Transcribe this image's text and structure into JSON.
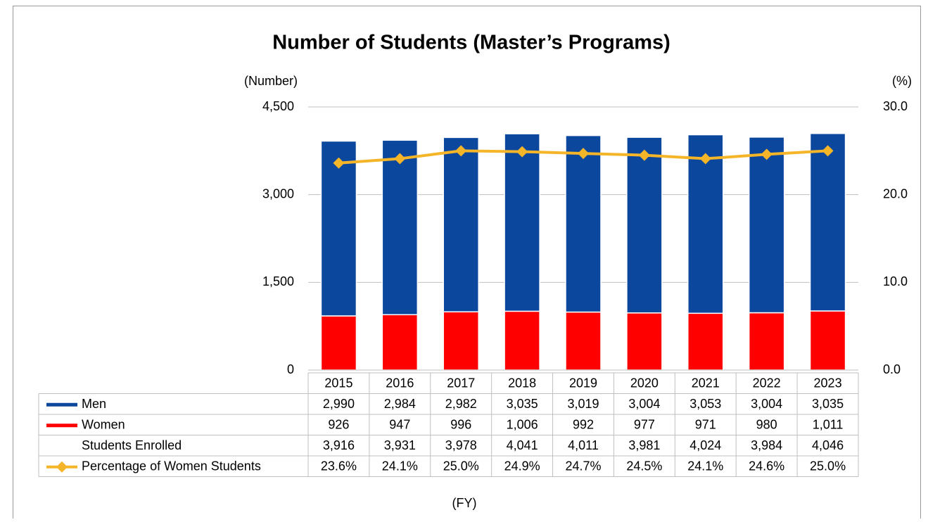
{
  "chart_data": {
    "type": "bar",
    "title": "Number of Students (Master’s Programs)",
    "y_label": "(Number)",
    "y2_label": "(%)",
    "x_label": "(FY)",
    "categories": [
      "2015",
      "2016",
      "2017",
      "2018",
      "2019",
      "2020",
      "2021",
      "2022",
      "2023"
    ],
    "series": [
      {
        "name": "Men",
        "color": "#0b479d",
        "values": [
          2990,
          2984,
          2982,
          3035,
          3019,
          3004,
          3053,
          3004,
          3035
        ],
        "value_labels": [
          "2,990",
          "2,984",
          "2,982",
          "3,035",
          "3,019",
          "3,004",
          "3,053",
          "3,004",
          "3,035"
        ]
      },
      {
        "name": "Women",
        "color": "#ff0000",
        "values": [
          926,
          947,
          996,
          1006,
          992,
          977,
          971,
          980,
          1011
        ],
        "value_labels": [
          "926",
          "947",
          "996",
          "1,006",
          "992",
          "977",
          "971",
          "980",
          "1,011"
        ]
      },
      {
        "name": "Students Enrolled",
        "values": [
          3916,
          3931,
          3978,
          4041,
          4011,
          3981,
          4024,
          3984,
          4046
        ],
        "value_labels": [
          "3,916",
          "3,931",
          "3,978",
          "4,041",
          "4,011",
          "3,981",
          "4,024",
          "3,984",
          "4,046"
        ]
      },
      {
        "name": "Percentage of Women Students",
        "color": "#f5b529",
        "axis": "y2",
        "values": [
          23.6,
          24.1,
          25.0,
          24.9,
          24.7,
          24.5,
          24.1,
          24.6,
          25.0
        ],
        "value_labels": [
          "23.6%",
          "24.1%",
          "25.0%",
          "24.9%",
          "24.7%",
          "24.5%",
          "24.1%",
          "24.6%",
          "25.0%"
        ]
      }
    ],
    "ylim": [
      0,
      4500
    ],
    "yticks": [
      0,
      {
        "value": 1500,
        "label": "1,500"
      },
      {
        "value": 3000,
        "label": "3,000"
      },
      {
        "value": 4500,
        "label": "4,500"
      }
    ],
    "y2lim": [
      0,
      30
    ],
    "y2ticks": [
      {
        "value": 0,
        "label": "0.0"
      },
      {
        "value": 10,
        "label": "10.0"
      },
      {
        "value": 20,
        "label": "20.0"
      },
      {
        "value": 30,
        "label": "30.0"
      }
    ],
    "grid": true
  }
}
